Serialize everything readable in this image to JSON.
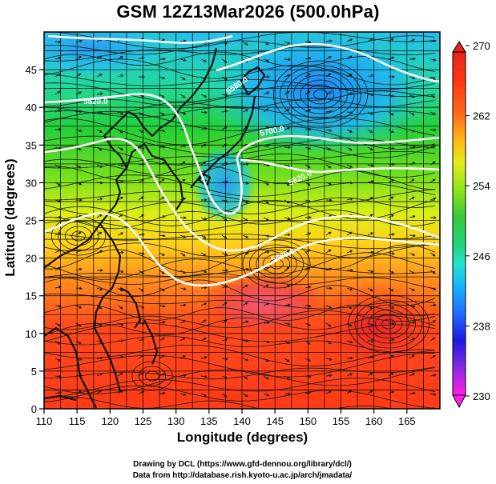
{
  "title": "GSM 12Z13Mar2026 (500.0hPa)",
  "x_axis": {
    "label": "Longitude (degrees)",
    "ticks": [
      "110",
      "115",
      "120",
      "125",
      "130",
      "135",
      "140",
      "145",
      "150",
      "155",
      "160",
      "165"
    ],
    "range": [
      110,
      170
    ]
  },
  "y_axis": {
    "label": "Latitude  (degrees)",
    "ticks": [
      "0",
      "5",
      "10",
      "15",
      "20",
      "25",
      "30",
      "35",
      "40",
      "45"
    ],
    "range": [
      0,
      50
    ]
  },
  "colorbar": {
    "labels": [
      "270",
      "262",
      "254",
      "246",
      "238",
      "230"
    ],
    "range": [
      230,
      270
    ],
    "colors": [
      "#ff1fe6",
      "#8a2be2",
      "#1a1adf",
      "#1e6fff",
      "#19b6ff",
      "#22e0d0",
      "#22d47a",
      "#38c83a",
      "#8ee61c",
      "#e6ea1a",
      "#ffb215",
      "#ff6a1a",
      "#ff3414",
      "#e2261a"
    ]
  },
  "contours": [
    {
      "label": "5520.0"
    },
    {
      "label": "5580.0"
    },
    {
      "label": "5700.0"
    },
    {
      "label": "5820.0"
    },
    {
      "label": "5880.0"
    }
  ],
  "credits": {
    "line1": "Drawing by DCL (https://www.gfd-dennou.org/library/dcl/)",
    "line2": "Data from http://database.rish.kyoto-u.ac.jp/arch/jmadata/"
  },
  "colors": {
    "land": "#111111",
    "contour": "#ffffff",
    "stream": "#1a1a1a"
  }
}
